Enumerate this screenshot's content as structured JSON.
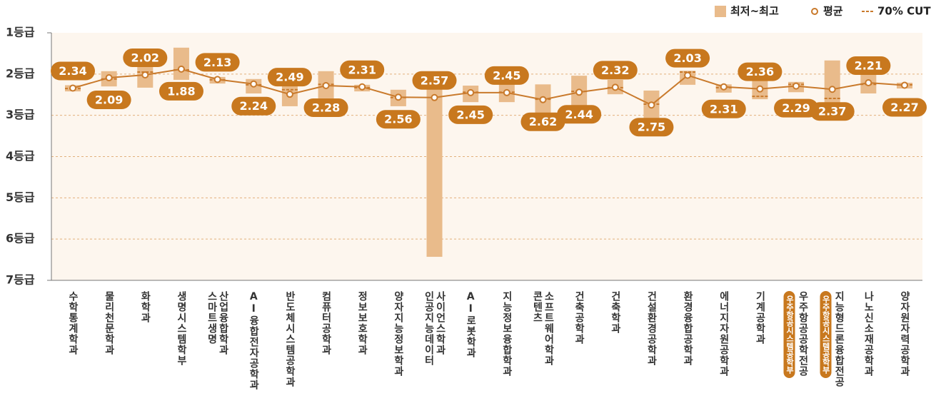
{
  "chart_data": {
    "type": "range",
    "categories": [
      "수학통계학과",
      "물리천문학과",
      "화학과",
      "생명시스템학부",
      "스마트생명\n산업융합학과",
      "AI융합전자공학과",
      "반도체시스템공학과",
      "컴퓨터공학과",
      "정보보호학과",
      "양자지능정보학과",
      "인공지능데이터\n사이언스학과",
      "AI로봇학과",
      "지능정보융합학과",
      "콘텐츠\n소프트웨어학과",
      "건축공학과",
      "건축학과",
      "건설환경공학과",
      "환경융합공학과",
      "에너지자원공학과",
      "기계공학과",
      "우주항공공학전공",
      "지능형드론융합전공",
      "나노신소재공학과",
      "양자원자력공학과"
    ],
    "category_groups": [
      null,
      null,
      null,
      null,
      null,
      null,
      null,
      null,
      null,
      null,
      null,
      null,
      null,
      null,
      null,
      null,
      null,
      null,
      null,
      null,
      "우주항공시스템공학부",
      "우주항공시스템공학부",
      null,
      null
    ],
    "series": [
      {
        "name": "최저~최고",
        "color": "#e9bb8b",
        "low": [
          2.27,
          1.93,
          1.8,
          1.36,
          2.07,
          2.12,
          2.19,
          1.93,
          2.26,
          2.38,
          2.09,
          2.28,
          2.19,
          2.25,
          2.04,
          2.14,
          2.4,
          1.92,
          2.25,
          2.14,
          2.19,
          1.67,
          1.78,
          2.21
        ],
        "high": [
          2.42,
          2.3,
          2.33,
          2.14,
          2.23,
          2.47,
          2.78,
          2.59,
          2.42,
          2.78,
          6.43,
          2.68,
          2.68,
          3.18,
          2.8,
          2.49,
          3.18,
          2.26,
          2.45,
          2.61,
          2.44,
          2.78,
          2.47,
          2.35
        ]
      },
      {
        "name": "평균",
        "color": "#c97a2c",
        "values": [
          2.34,
          2.09,
          2.02,
          1.88,
          2.13,
          2.24,
          2.49,
          2.28,
          2.31,
          2.56,
          2.57,
          2.45,
          2.45,
          2.62,
          2.44,
          2.32,
          2.75,
          2.03,
          2.31,
          2.36,
          2.29,
          2.37,
          2.21,
          2.27
        ]
      },
      {
        "name": "70% CUT",
        "color": "#c97a2c",
        "values": [
          2.35,
          2.12,
          1.95,
          1.9,
          2.14,
          2.26,
          2.38,
          2.25,
          2.33,
          2.57,
          2.33,
          2.44,
          2.44,
          2.61,
          2.42,
          2.33,
          2.73,
          1.95,
          2.33,
          2.54,
          2.25,
          2.59,
          2.25,
          2.26
        ]
      }
    ],
    "ylim": [
      1,
      7
    ],
    "yticks": [
      {
        "value": 1,
        "label": "1등급"
      },
      {
        "value": 2,
        "label": "2등급"
      },
      {
        "value": 3,
        "label": "3등급"
      },
      {
        "value": 4,
        "label": "4등급"
      },
      {
        "value": 5,
        "label": "5등급"
      },
      {
        "value": 6,
        "label": "6등급"
      },
      {
        "value": 7,
        "label": "7등급"
      }
    ],
    "y_inverted": true,
    "grid": true,
    "legend": "top-right",
    "label_color": "#c8781e",
    "background": "#fdf6ee"
  }
}
